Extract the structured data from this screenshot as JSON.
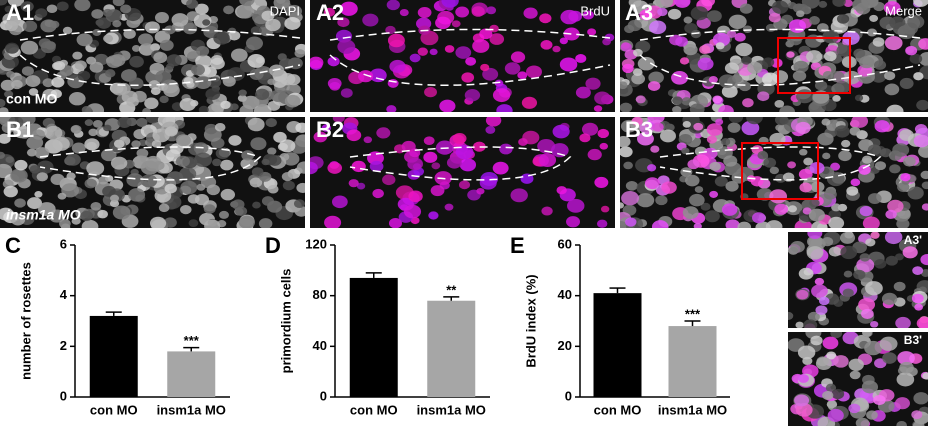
{
  "panels": {
    "a1": "A1",
    "dapi": "DAPI",
    "a2": "A2",
    "brdu": "BrdU",
    "a3": "A3",
    "merge": "Merge",
    "con": "con MO",
    "b1": "B1",
    "b2": "B2",
    "b3": "B3",
    "insm": "insm1a MO",
    "a3p": "A3'",
    "b3p": "B3'"
  },
  "chart_data": [
    {
      "type": "bar",
      "panel_label": "C",
      "ylabel": "number of rosettes",
      "categories": [
        "con MO",
        "insm1a MO"
      ],
      "values": [
        3.2,
        1.8
      ],
      "errors": [
        0.15,
        0.15
      ],
      "colors": [
        "#000000",
        "#a6a6a6"
      ],
      "annotation": "***",
      "ylim": [
        0,
        6
      ],
      "yticks": [
        0,
        2,
        4,
        6
      ]
    },
    {
      "type": "bar",
      "panel_label": "D",
      "ylabel": "primordium cells",
      "categories": [
        "con MO",
        "insm1a MO"
      ],
      "values": [
        94,
        76
      ],
      "errors": [
        4,
        3
      ],
      "colors": [
        "#000000",
        "#a6a6a6"
      ],
      "annotation": "**",
      "ylim": [
        0,
        120
      ],
      "yticks": [
        0,
        40,
        80,
        120
      ]
    },
    {
      "type": "bar",
      "panel_label": "E",
      "ylabel": "BrdU index (%)",
      "categories": [
        "con MO",
        "insm1a MO"
      ],
      "values": [
        41,
        28
      ],
      "errors": [
        2,
        2
      ],
      "colors": [
        "#000000",
        "#a6a6a6"
      ],
      "annotation": "***",
      "ylim": [
        0,
        60
      ],
      "yticks": [
        0,
        20,
        40,
        60
      ]
    }
  ]
}
